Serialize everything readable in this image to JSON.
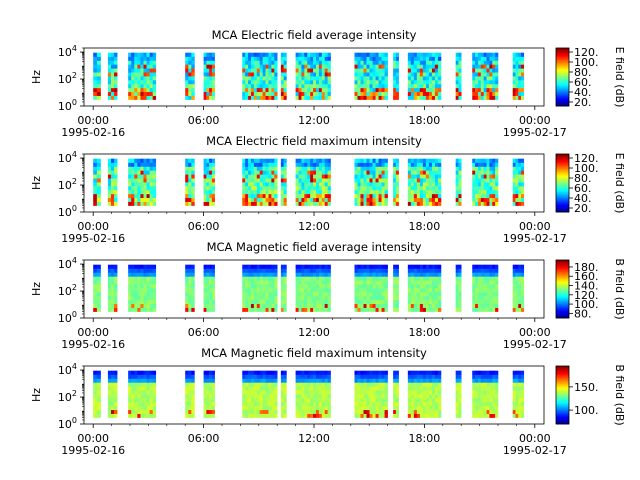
{
  "chart_data": [
    {
      "type": "heatmap",
      "title": "MCA  Electric field average intensity",
      "ylabel": "Hz",
      "y_scale": "log",
      "ylim": [
        1,
        20000
      ],
      "y_ticks": [
        {
          "v": 1,
          "b": "10",
          "e": "0"
        },
        {
          "v": 100,
          "b": "10",
          "e": "2"
        },
        {
          "v": 10000,
          "b": "10",
          "e": "4"
        }
      ],
      "x_ticks": [
        {
          "h": 0,
          "t": "00:00"
        },
        {
          "h": 6,
          "t": "06:00"
        },
        {
          "h": 12,
          "t": "12:00"
        },
        {
          "h": 18,
          "t": "18:00"
        },
        {
          "h": 24,
          "t": "00:00"
        }
      ],
      "x_dates": [
        {
          "h": 0,
          "t": "1995-02-16"
        },
        {
          "h": 24,
          "t": "1995-02-17"
        }
      ],
      "xlim_hours": [
        -0.5,
        24.5
      ],
      "colorbar": {
        "label": "E field (dB)",
        "min": 12,
        "max": 128,
        "ticks": [
          "20.",
          "40.",
          "60.",
          "80.",
          "100.",
          "120."
        ],
        "tick_values": [
          20,
          40,
          60,
          80,
          100,
          120
        ]
      },
      "base_level": 0.45
    },
    {
      "type": "heatmap",
      "title": "MCA  Electric field maximum intensity",
      "ylabel": "Hz",
      "y_scale": "log",
      "ylim": [
        1,
        20000
      ],
      "y_ticks": [
        {
          "v": 1,
          "b": "10",
          "e": "0"
        },
        {
          "v": 100,
          "b": "10",
          "e": "2"
        },
        {
          "v": 10000,
          "b": "10",
          "e": "4"
        }
      ],
      "x_ticks": [
        {
          "h": 0,
          "t": "00:00"
        },
        {
          "h": 6,
          "t": "06:00"
        },
        {
          "h": 12,
          "t": "12:00"
        },
        {
          "h": 18,
          "t": "18:00"
        },
        {
          "h": 24,
          "t": "00:00"
        }
      ],
      "x_dates": [
        {
          "h": 0,
          "t": "1995-02-16"
        },
        {
          "h": 24,
          "t": "1995-02-17"
        }
      ],
      "xlim_hours": [
        -0.5,
        24.5
      ],
      "colorbar": {
        "label": "E field (dB)",
        "min": 12,
        "max": 128,
        "ticks": [
          "20.",
          "40.",
          "60.",
          "80.",
          "100.",
          "120."
        ],
        "tick_values": [
          20,
          40,
          60,
          80,
          100,
          120
        ]
      },
      "base_level": 0.5
    },
    {
      "type": "heatmap",
      "title": "MCA  Magnetic field average intensity",
      "ylabel": "Hz",
      "y_scale": "log",
      "ylim": [
        1,
        20000
      ],
      "y_ticks": [
        {
          "v": 1,
          "b": "10",
          "e": "0"
        },
        {
          "v": 100,
          "b": "10",
          "e": "2"
        },
        {
          "v": 10000,
          "b": "10",
          "e": "4"
        }
      ],
      "x_ticks": [
        {
          "h": 0,
          "t": "00:00"
        },
        {
          "h": 6,
          "t": "06:00"
        },
        {
          "h": 12,
          "t": "12:00"
        },
        {
          "h": 18,
          "t": "18:00"
        },
        {
          "h": 24,
          "t": "00:00"
        }
      ],
      "x_dates": [
        {
          "h": 0,
          "t": "1995-02-16"
        },
        {
          "h": 24,
          "t": "1995-02-17"
        }
      ],
      "xlim_hours": [
        -0.5,
        24.5
      ],
      "colorbar": {
        "label": "B field (dB)",
        "min": 70,
        "max": 195,
        "ticks": [
          "80.",
          "100.",
          "120.",
          "140.",
          "160.",
          "180."
        ],
        "tick_values": [
          80,
          100,
          120,
          140,
          160,
          180
        ]
      },
      "base_level": 0.5
    },
    {
      "type": "heatmap",
      "title": "MCA  Magnetic field maximum intensity",
      "ylabel": "Hz",
      "y_scale": "log",
      "ylim": [
        1,
        20000
      ],
      "y_ticks": [
        {
          "v": 1,
          "b": "10",
          "e": "0"
        },
        {
          "v": 100,
          "b": "10",
          "e": "2"
        },
        {
          "v": 10000,
          "b": "10",
          "e": "4"
        }
      ],
      "x_ticks": [
        {
          "h": 0,
          "t": "00:00"
        },
        {
          "h": 6,
          "t": "06:00"
        },
        {
          "h": 12,
          "t": "12:00"
        },
        {
          "h": 18,
          "t": "18:00"
        },
        {
          "h": 24,
          "t": "00:00"
        }
      ],
      "x_dates": [
        {
          "h": 0,
          "t": "1995-02-16"
        },
        {
          "h": 24,
          "t": "1995-02-17"
        }
      ],
      "xlim_hours": [
        -0.5,
        24.5
      ],
      "colorbar": {
        "label": "B field (dB)",
        "min": 70,
        "max": 195,
        "ticks": [
          "100.",
          "150."
        ],
        "tick_values": [
          100,
          150
        ]
      },
      "base_level": 0.55
    }
  ],
  "data_intervals_hours": [
    [
      0.0,
      0.4
    ],
    [
      0.8,
      1.3
    ],
    [
      1.9,
      3.4
    ],
    [
      5.0,
      5.5
    ],
    [
      6.0,
      6.6
    ],
    [
      8.1,
      10.0
    ],
    [
      10.2,
      10.5
    ],
    [
      11.0,
      12.9
    ],
    [
      14.2,
      16.0
    ],
    [
      16.3,
      16.6
    ],
    [
      17.1,
      18.9
    ],
    [
      19.7,
      20.0
    ],
    [
      20.6,
      22.0
    ],
    [
      22.8,
      23.4
    ]
  ],
  "colormap": "jet"
}
